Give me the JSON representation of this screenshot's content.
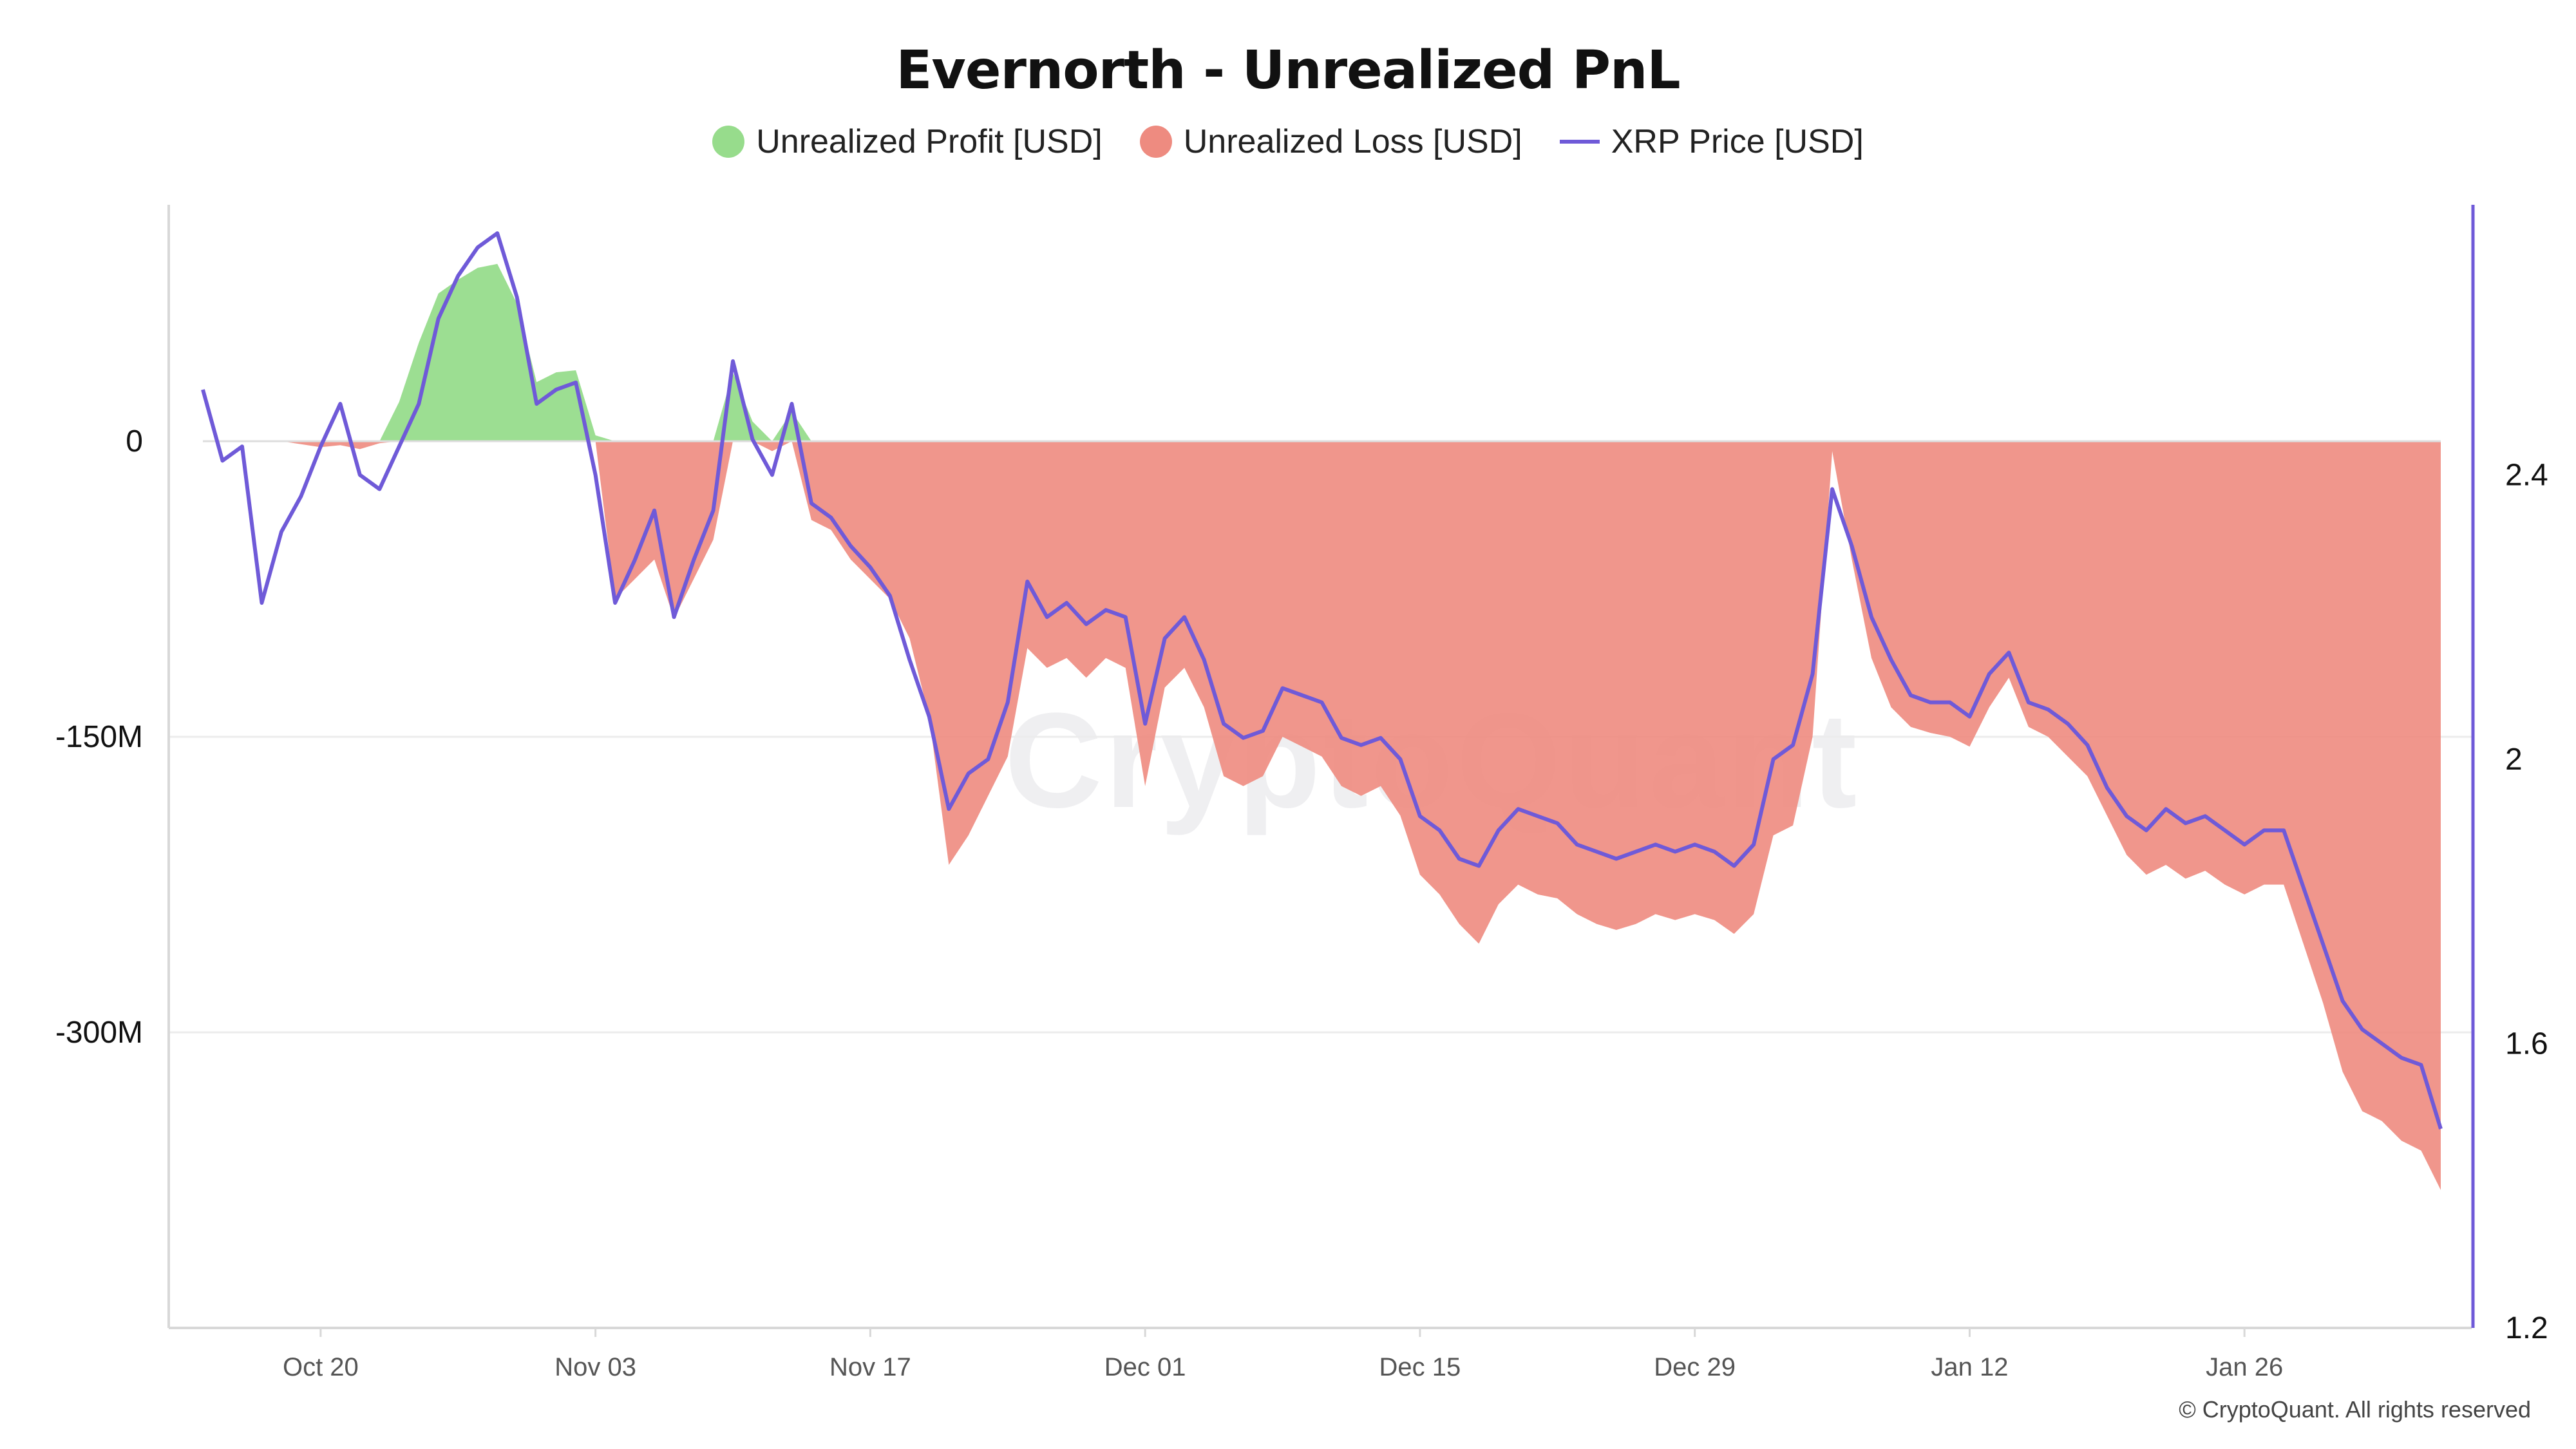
{
  "title": "Evernorth - Unrealized PnL",
  "legend": {
    "profit": "Unrealized Profit [USD]",
    "loss": "Unrealized Loss [USD]",
    "price": "XRP Price [USD]"
  },
  "watermark": "CryptoQuant",
  "copyright": "© CryptoQuant. All rights reserved",
  "colors": {
    "profit": "#97dc8c",
    "loss": "#ee8b80",
    "price": "#6f5ad8",
    "grid": "#ececec",
    "axis": "#d8d8d8"
  },
  "chart_data": {
    "type": "area",
    "title": "Evernorth - Unrealized PnL",
    "left_axis": {
      "ticks": [
        "0",
        "-150M",
        "-300M"
      ],
      "tick_values": [
        0,
        -150000000,
        -300000000
      ],
      "range": [
        -450000000,
        120000000
      ]
    },
    "right_axis": {
      "ticks": [
        "2.4",
        "2",
        "1.6",
        "1.2"
      ],
      "tick_values": [
        2.4,
        2.0,
        1.6,
        1.2
      ],
      "range": [
        1.2,
        2.78
      ]
    },
    "x_ticks": [
      "Oct 20",
      "Nov 03",
      "Nov 17",
      "Dec 01",
      "Dec 15",
      "Dec 29",
      "Jan 12",
      "Jan 26"
    ],
    "x_range": [
      "Oct 14",
      "Feb 05"
    ],
    "grid": true,
    "legend_position": "top-center",
    "series": [
      {
        "name": "XRP Price [USD]",
        "axis": "right",
        "points": [
          [
            "Oct 14",
            2.52
          ],
          [
            "Oct 15",
            2.42
          ],
          [
            "Oct 16",
            2.44
          ],
          [
            "Oct 17",
            2.22
          ],
          [
            "Oct 18",
            2.32
          ],
          [
            "Oct 19",
            2.37
          ],
          [
            "Oct 20",
            2.44
          ],
          [
            "Oct 21",
            2.5
          ],
          [
            "Oct 22",
            2.4
          ],
          [
            "Oct 23",
            2.38
          ],
          [
            "Oct 24",
            2.44
          ],
          [
            "Oct 25",
            2.5
          ],
          [
            "Oct 26",
            2.62
          ],
          [
            "Oct 27",
            2.68
          ],
          [
            "Oct 28",
            2.72
          ],
          [
            "Oct 29",
            2.74
          ],
          [
            "Oct 30",
            2.65
          ],
          [
            "Oct 31",
            2.5
          ],
          [
            "Nov 01",
            2.52
          ],
          [
            "Nov 02",
            2.53
          ],
          [
            "Nov 03",
            2.4
          ],
          [
            "Nov 04",
            2.22
          ],
          [
            "Nov 05",
            2.28
          ],
          [
            "Nov 06",
            2.35
          ],
          [
            "Nov 07",
            2.2
          ],
          [
            "Nov 08",
            2.28
          ],
          [
            "Nov 09",
            2.35
          ],
          [
            "Nov 10",
            2.56
          ],
          [
            "Nov 11",
            2.45
          ],
          [
            "Nov 12",
            2.4
          ],
          [
            "Nov 13",
            2.5
          ],
          [
            "Nov 14",
            2.36
          ],
          [
            "Nov 15",
            2.34
          ],
          [
            "Nov 16",
            2.3
          ],
          [
            "Nov 17",
            2.27
          ],
          [
            "Nov 18",
            2.23
          ],
          [
            "Nov 19",
            2.14
          ],
          [
            "Nov 20",
            2.06
          ],
          [
            "Nov 21",
            1.93
          ],
          [
            "Nov 22",
            1.98
          ],
          [
            "Nov 23",
            2.0
          ],
          [
            "Nov 24",
            2.08
          ],
          [
            "Nov 25",
            2.25
          ],
          [
            "Nov 26",
            2.2
          ],
          [
            "Nov 27",
            2.22
          ],
          [
            "Nov 28",
            2.19
          ],
          [
            "Nov 29",
            2.21
          ],
          [
            "Nov 30",
            2.2
          ],
          [
            "Dec 01",
            2.05
          ],
          [
            "Dec 02",
            2.17
          ],
          [
            "Dec 03",
            2.2
          ],
          [
            "Dec 04",
            2.14
          ],
          [
            "Dec 05",
            2.05
          ],
          [
            "Dec 06",
            2.03
          ],
          [
            "Dec 07",
            2.04
          ],
          [
            "Dec 08",
            2.1
          ],
          [
            "Dec 09",
            2.09
          ],
          [
            "Dec 10",
            2.08
          ],
          [
            "Dec 11",
            2.03
          ],
          [
            "Dec 12",
            2.02
          ],
          [
            "Dec 13",
            2.03
          ],
          [
            "Dec 14",
            2.0
          ],
          [
            "Dec 15",
            1.92
          ],
          [
            "Dec 16",
            1.9
          ],
          [
            "Dec 17",
            1.86
          ],
          [
            "Dec 18",
            1.85
          ],
          [
            "Dec 19",
            1.9
          ],
          [
            "Dec 20",
            1.93
          ],
          [
            "Dec 21",
            1.92
          ],
          [
            "Dec 22",
            1.91
          ],
          [
            "Dec 23",
            1.88
          ],
          [
            "Dec 24",
            1.87
          ],
          [
            "Dec 25",
            1.86
          ],
          [
            "Dec 26",
            1.87
          ],
          [
            "Dec 27",
            1.88
          ],
          [
            "Dec 28",
            1.87
          ],
          [
            "Dec 29",
            1.88
          ],
          [
            "Dec 30",
            1.87
          ],
          [
            "Dec 31",
            1.85
          ],
          [
            "Jan 01",
            1.88
          ],
          [
            "Jan 02",
            2.0
          ],
          [
            "Jan 03",
            2.02
          ],
          [
            "Jan 04",
            2.12
          ],
          [
            "Jan 05",
            2.38
          ],
          [
            "Jan 06",
            2.3
          ],
          [
            "Jan 07",
            2.2
          ],
          [
            "Jan 08",
            2.14
          ],
          [
            "Jan 09",
            2.09
          ],
          [
            "Jan 10",
            2.08
          ],
          [
            "Jan 11",
            2.08
          ],
          [
            "Jan 12",
            2.06
          ],
          [
            "Jan 13",
            2.12
          ],
          [
            "Jan 14",
            2.15
          ],
          [
            "Jan 15",
            2.08
          ],
          [
            "Jan 16",
            2.07
          ],
          [
            "Jan 17",
            2.05
          ],
          [
            "Jan 18",
            2.02
          ],
          [
            "Jan 19",
            1.96
          ],
          [
            "Jan 20",
            1.92
          ],
          [
            "Jan 21",
            1.9
          ],
          [
            "Jan 22",
            1.93
          ],
          [
            "Jan 23",
            1.91
          ],
          [
            "Jan 24",
            1.92
          ],
          [
            "Jan 25",
            1.9
          ],
          [
            "Jan 26",
            1.88
          ],
          [
            "Jan 27",
            1.9
          ],
          [
            "Jan 28",
            1.9
          ],
          [
            "Jan 29",
            1.82
          ],
          [
            "Jan 30",
            1.74
          ],
          [
            "Jan 31",
            1.66
          ],
          [
            "Feb 01",
            1.62
          ],
          [
            "Feb 02",
            1.6
          ],
          [
            "Feb 03",
            1.58
          ],
          [
            "Feb 04",
            1.57
          ],
          [
            "Feb 05",
            1.48
          ]
        ]
      },
      {
        "name": "Unrealized Profit [USD] / Unrealized Loss [USD]",
        "axis": "left",
        "points": [
          [
            "Oct 14",
            0
          ],
          [
            "Oct 18",
            0
          ],
          [
            "Oct 20",
            -3000000
          ],
          [
            "Oct 21",
            -2000000
          ],
          [
            "Oct 22",
            -4000000
          ],
          [
            "Oct 23",
            -1000000
          ],
          [
            "Oct 24",
            20000000
          ],
          [
            "Oct 25",
            50000000
          ],
          [
            "Oct 26",
            75000000
          ],
          [
            "Oct 27",
            82000000
          ],
          [
            "Oct 28",
            88000000
          ],
          [
            "Oct 29",
            90000000
          ],
          [
            "Oct 30",
            70000000
          ],
          [
            "Oct 31",
            30000000
          ],
          [
            "Nov 01",
            35000000
          ],
          [
            "Nov 02",
            36000000
          ],
          [
            "Nov 03",
            3000000
          ],
          [
            "Nov 04",
            -80000000
          ],
          [
            "Nov 05",
            -70000000
          ],
          [
            "Nov 06",
            -60000000
          ],
          [
            "Nov 07",
            -90000000
          ],
          [
            "Nov 08",
            -70000000
          ],
          [
            "Nov 09",
            -50000000
          ],
          [
            "Nov 10",
            35000000
          ],
          [
            "Nov 11",
            10000000
          ],
          [
            "Nov 12",
            -5000000
          ],
          [
            "Nov 13",
            15000000
          ],
          [
            "Nov 14",
            -40000000
          ],
          [
            "Nov 15",
            -45000000
          ],
          [
            "Nov 16",
            -60000000
          ],
          [
            "Nov 17",
            -70000000
          ],
          [
            "Nov 18",
            -80000000
          ],
          [
            "Nov 19",
            -100000000
          ],
          [
            "Nov 20",
            -140000000
          ],
          [
            "Nov 21",
            -215000000
          ],
          [
            "Nov 22",
            -200000000
          ],
          [
            "Nov 23",
            -180000000
          ],
          [
            "Nov 24",
            -160000000
          ],
          [
            "Nov 25",
            -105000000
          ],
          [
            "Nov 26",
            -115000000
          ],
          [
            "Nov 27",
            -110000000
          ],
          [
            "Nov 28",
            -120000000
          ],
          [
            "Nov 29",
            -110000000
          ],
          [
            "Nov 30",
            -115000000
          ],
          [
            "Dec 01",
            -175000000
          ],
          [
            "Dec 02",
            -125000000
          ],
          [
            "Dec 03",
            -115000000
          ],
          [
            "Dec 04",
            -135000000
          ],
          [
            "Dec 05",
            -170000000
          ],
          [
            "Dec 06",
            -175000000
          ],
          [
            "Dec 07",
            -170000000
          ],
          [
            "Dec 08",
            -150000000
          ],
          [
            "Dec 09",
            -155000000
          ],
          [
            "Dec 10",
            -160000000
          ],
          [
            "Dec 11",
            -175000000
          ],
          [
            "Dec 12",
            -180000000
          ],
          [
            "Dec 13",
            -175000000
          ],
          [
            "Dec 14",
            -190000000
          ],
          [
            "Dec 15",
            -220000000
          ],
          [
            "Dec 16",
            -230000000
          ],
          [
            "Dec 17",
            -245000000
          ],
          [
            "Dec 18",
            -255000000
          ],
          [
            "Dec 19",
            -235000000
          ],
          [
            "Dec 20",
            -225000000
          ],
          [
            "Dec 21",
            -230000000
          ],
          [
            "Dec 22",
            -232000000
          ],
          [
            "Dec 23",
            -240000000
          ],
          [
            "Dec 24",
            -245000000
          ],
          [
            "Dec 25",
            -248000000
          ],
          [
            "Dec 26",
            -245000000
          ],
          [
            "Dec 27",
            -240000000
          ],
          [
            "Dec 28",
            -243000000
          ],
          [
            "Dec 29",
            -240000000
          ],
          [
            "Dec 30",
            -243000000
          ],
          [
            "Dec 31",
            -250000000
          ],
          [
            "Jan 01",
            -240000000
          ],
          [
            "Jan 02",
            -200000000
          ],
          [
            "Jan 03",
            -195000000
          ],
          [
            "Jan 04",
            -150000000
          ],
          [
            "Jan 05",
            -5000000
          ],
          [
            "Jan 06",
            -60000000
          ],
          [
            "Jan 07",
            -110000000
          ],
          [
            "Jan 08",
            -135000000
          ],
          [
            "Jan 09",
            -145000000
          ],
          [
            "Jan 10",
            -148000000
          ],
          [
            "Jan 11",
            -150000000
          ],
          [
            "Jan 12",
            -155000000
          ],
          [
            "Jan 13",
            -135000000
          ],
          [
            "Jan 14",
            -120000000
          ],
          [
            "Jan 15",
            -145000000
          ],
          [
            "Jan 16",
            -150000000
          ],
          [
            "Jan 17",
            -160000000
          ],
          [
            "Jan 18",
            -170000000
          ],
          [
            "Jan 19",
            -190000000
          ],
          [
            "Jan 20",
            -210000000
          ],
          [
            "Jan 21",
            -220000000
          ],
          [
            "Jan 22",
            -215000000
          ],
          [
            "Jan 23",
            -222000000
          ],
          [
            "Jan 24",
            -218000000
          ],
          [
            "Jan 25",
            -225000000
          ],
          [
            "Jan 26",
            -230000000
          ],
          [
            "Jan 27",
            -225000000
          ],
          [
            "Jan 28",
            -225000000
          ],
          [
            "Jan 29",
            -255000000
          ],
          [
            "Jan 30",
            -285000000
          ],
          [
            "Jan 31",
            -320000000
          ],
          [
            "Feb 01",
            -340000000
          ],
          [
            "Feb 02",
            -345000000
          ],
          [
            "Feb 03",
            -355000000
          ],
          [
            "Feb 04",
            -360000000
          ],
          [
            "Feb 05",
            -380000000
          ]
        ]
      }
    ]
  }
}
